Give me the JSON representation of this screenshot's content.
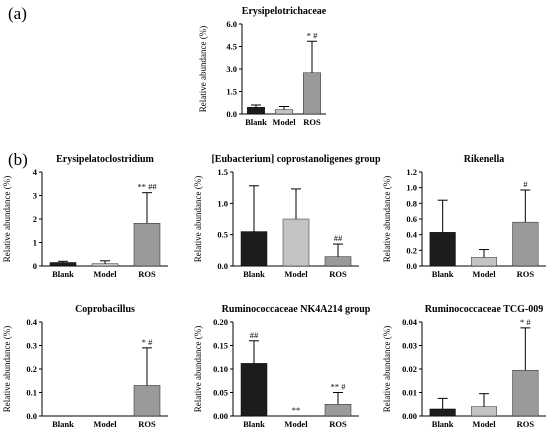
{
  "panels": {
    "a": "(a)",
    "b": "(b)"
  },
  "colors": {
    "Blank": "#1c1c1c",
    "Model": "#c3c3c3",
    "ROS": "#9a9a9a"
  },
  "chart_data": [
    {
      "type": "bar",
      "title": "Erysipelotrichaceae",
      "ylabel": "Relative abundance (%)",
      "categories": [
        "Blank",
        "Model",
        "ROS"
      ],
      "values": [
        0.45,
        0.3,
        2.75
      ],
      "errors": [
        0.15,
        0.2,
        2.1
      ],
      "annotations": [
        "",
        "",
        "* #"
      ],
      "ylim": [
        0,
        6.0
      ],
      "yticks": [
        "0.0",
        "1.5",
        "3.0",
        "4.5",
        "6.0"
      ]
    },
    {
      "type": "bar",
      "title": "Erysipelatoclostridium",
      "ylabel": "Relative abundance (%)",
      "categories": [
        "Blank",
        "Model",
        "ROS"
      ],
      "values": [
        0.15,
        0.1,
        1.82
      ],
      "errors": [
        0.05,
        0.12,
        1.3
      ],
      "annotations": [
        "",
        "",
        "** ##"
      ],
      "ylim": [
        0,
        4
      ],
      "yticks": [
        "0",
        "1",
        "2",
        "3",
        "4"
      ]
    },
    {
      "type": "bar",
      "title": "[Eubacterium] coprostanoligenes group",
      "ylabel": "Relative abundance (%)",
      "categories": [
        "Blank",
        "Model",
        "ROS"
      ],
      "values": [
        0.55,
        0.75,
        0.15
      ],
      "errors": [
        0.73,
        0.48,
        0.2
      ],
      "annotations": [
        "",
        "",
        "##"
      ],
      "ylim": [
        0,
        1.5
      ],
      "yticks": [
        "0.0",
        "0.5",
        "1.0",
        "1.5"
      ]
    },
    {
      "type": "bar",
      "title": "Rikenella",
      "ylabel": "Relative abundance (%)",
      "categories": [
        "Blank",
        "Model",
        "ROS"
      ],
      "values": [
        0.43,
        0.11,
        0.56
      ],
      "errors": [
        0.41,
        0.1,
        0.41
      ],
      "annotations": [
        "",
        "",
        "#"
      ],
      "ylim": [
        0,
        1.2
      ],
      "yticks": [
        "0.0",
        "0.2",
        "0.4",
        "0.6",
        "0.8",
        "1.0",
        "1.2"
      ]
    },
    {
      "type": "bar",
      "title": "Coprobacillus",
      "ylabel": "Relative abundance (%)",
      "categories": [
        "Blank",
        "Model",
        "ROS"
      ],
      "values": [
        0.0,
        0.0,
        0.13
      ],
      "errors": [
        0.0,
        0.0,
        0.16
      ],
      "annotations": [
        "",
        "",
        "* #"
      ],
      "ylim": [
        0,
        0.4
      ],
      "yticks": [
        "0.0",
        "0.1",
        "0.2",
        "0.3",
        "0.4"
      ]
    },
    {
      "type": "bar",
      "title": "Ruminococcaceae NK4A214 group",
      "ylabel": "Relative abundance (%)",
      "categories": [
        "Blank",
        "Model",
        "ROS"
      ],
      "values": [
        0.112,
        0.0,
        0.025
      ],
      "errors": [
        0.048,
        0.0,
        0.025
      ],
      "annotations": [
        "##",
        "**",
        "** #"
      ],
      "ylim": [
        0,
        0.2
      ],
      "yticks": [
        "0.00",
        "0.05",
        "0.10",
        "0.15",
        "0.20"
      ]
    },
    {
      "type": "bar",
      "title": "Ruminococcaceae TCG-009",
      "ylabel": "Relative abundance (%)",
      "categories": [
        "Blank",
        "Model",
        "ROS"
      ],
      "values": [
        0.003,
        0.004,
        0.0195
      ],
      "errors": [
        0.0045,
        0.0055,
        0.018
      ],
      "annotations": [
        "",
        "",
        "* #"
      ],
      "ylim": [
        0,
        0.04
      ],
      "yticks": [
        "0.00",
        "0.01",
        "0.02",
        "0.03",
        "0.04"
      ]
    }
  ]
}
